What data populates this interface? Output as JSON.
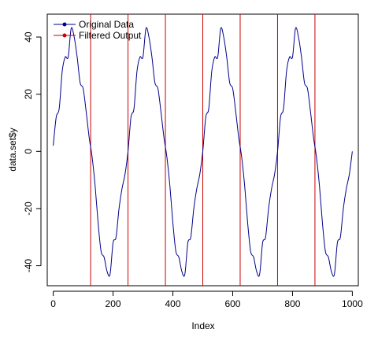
{
  "chart_data": {
    "type": "line",
    "title": "",
    "xlabel": "Index",
    "ylabel": "data.set$y",
    "xlim": [
      -20,
      1020
    ],
    "ylim": [
      -47,
      48
    ],
    "xticks": [
      0,
      200,
      400,
      600,
      800,
      1000
    ],
    "xtick_labels": [
      "0",
      "200",
      "400",
      "600",
      "800",
      "1000"
    ],
    "yticks": [
      -40,
      -20,
      0,
      20,
      40
    ],
    "ytick_labels": [
      "-40",
      "-20",
      "0",
      "20",
      "40"
    ],
    "grid": false,
    "legend_position": "top-left",
    "series": [
      {
        "name": "Original Data",
        "color": "#00008B",
        "x": [
          0,
          10,
          20,
          30,
          40,
          50,
          60,
          70,
          80,
          90,
          100,
          110,
          120,
          130,
          140,
          150,
          160,
          170,
          180,
          190,
          200,
          210,
          220,
          230,
          240,
          250
        ],
        "values": [
          2,
          12,
          15,
          28,
          33,
          33,
          43,
          40,
          33,
          24,
          22,
          14,
          5,
          -2,
          -12,
          -25,
          -35,
          -37,
          -42,
          -43,
          -32,
          -30,
          -20,
          -13,
          -8,
          0
        ],
        "period": 250,
        "repeats": 4
      },
      {
        "name": "Filtered Output",
        "color": "#CC0000",
        "x": [
          125,
          250,
          375,
          500,
          625,
          750,
          875
        ],
        "style": "vertical-lines"
      }
    ]
  }
}
